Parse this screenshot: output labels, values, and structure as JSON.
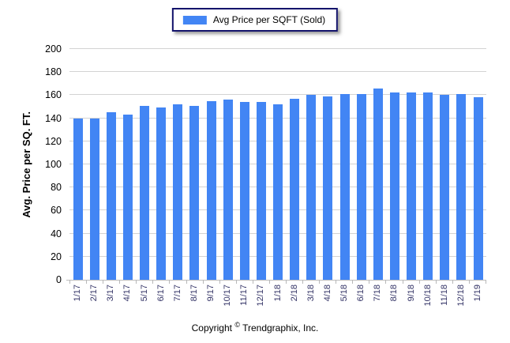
{
  "legend": {
    "label": "Avg Price per SQFT (Sold)"
  },
  "footer": {
    "prefix": "Copyright",
    "symbol": "©",
    "suffix": "Trendgraphix, Inc."
  },
  "colors": {
    "bar": "#4285f4",
    "gridline": "#d3d3d3",
    "x_label": "#333366",
    "legend_border": "#13136b"
  },
  "chart_data": {
    "type": "bar",
    "title": "Avg Price per SQFT (Sold)",
    "xlabel": "",
    "ylabel": "Avg. Price per SQ. FT.",
    "ylim": [
      0,
      200
    ],
    "y_ticks": [
      0,
      20,
      40,
      60,
      80,
      100,
      120,
      140,
      160,
      180,
      200
    ],
    "grid": true,
    "legend_position": "top-center",
    "categories": [
      "1/17",
      "2/17",
      "3/17",
      "4/17",
      "5/17",
      "6/17",
      "7/17",
      "8/17",
      "9/17",
      "10/17",
      "11/17",
      "12/17",
      "1/18",
      "2/18",
      "3/18",
      "4/18",
      "5/18",
      "6/18",
      "7/18",
      "8/18",
      "9/18",
      "10/18",
      "11/18",
      "12/18",
      "1/19"
    ],
    "series": [
      {
        "name": "Avg Price per SQFT (Sold)",
        "values": [
          140,
          140,
          145,
          143,
          151,
          149,
          152,
          151,
          155,
          156,
          154,
          154,
          152,
          157,
          160,
          159,
          161,
          161,
          166,
          162,
          162,
          162,
          160,
          161,
          158
        ]
      }
    ]
  }
}
